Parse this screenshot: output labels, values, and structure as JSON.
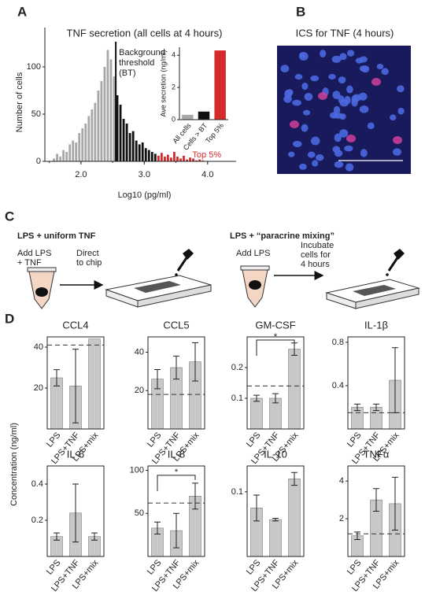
{
  "panel_labels": [
    "A",
    "B",
    "C",
    "D"
  ],
  "panel_b": {
    "title": "ICS for TNF (4 hours)"
  },
  "panel_c": {
    "left": {
      "title": "LPS + uniform TNF",
      "step1": [
        "Add LPS",
        "+ TNF"
      ],
      "step2": [
        "Direct",
        "to chip"
      ]
    },
    "right": {
      "title": "LPS + “paracrine mixing”",
      "step1": [
        "Add LPS"
      ],
      "step2": [
        "Incubate",
        "cells for",
        "4 hours"
      ]
    }
  },
  "panel_d": {
    "ylabel": "Concentration (ng/ml)"
  },
  "chart_data": [
    {
      "type": "histogram",
      "title": "TNF secretion (all cells at 4 hours)",
      "xlabel": "Log10 (pg/ml)",
      "ylabel": "Number of cells",
      "bins": [
        1.55,
        1.6,
        1.65,
        1.7,
        1.75,
        1.8,
        1.85,
        1.9,
        1.95,
        2.0,
        2.05,
        2.1,
        2.15,
        2.2,
        2.25,
        2.3,
        2.35,
        2.4,
        2.45,
        2.5,
        2.55,
        2.6,
        2.65,
        2.7,
        2.75,
        2.8,
        2.85,
        2.9,
        2.95,
        3.0,
        3.05,
        3.1,
        3.15,
        3.2,
        3.25,
        3.3,
        3.35,
        3.4,
        3.45,
        3.5,
        3.55,
        3.6,
        3.65,
        3.7,
        3.75,
        3.8,
        3.85,
        3.9,
        3.95
      ],
      "counts": [
        3,
        8,
        5,
        12,
        10,
        18,
        22,
        20,
        30,
        35,
        40,
        48,
        55,
        62,
        75,
        85,
        100,
        118,
        108,
        90,
        70,
        60,
        45,
        40,
        30,
        32,
        22,
        18,
        20,
        14,
        12,
        10,
        8,
        6,
        9,
        5,
        7,
        4,
        10,
        5,
        3,
        6,
        2,
        4,
        3,
        1,
        2,
        1
      ],
      "color": "#a8a8a8",
      "annotations": [
        {
          "text": [
            "Background",
            "threshold",
            "(BT)"
          ],
          "x": 2.55,
          "color": "#111111",
          "line": true
        },
        {
          "text": [
            "Top 5%"
          ],
          "x": 3.2,
          "color": "#d42a2a",
          "line": false
        }
      ],
      "xlim": [
        1.43,
        4.45
      ],
      "xticks": [
        {
          "value": 2,
          "label": "2.0"
        },
        {
          "value": 3,
          "label": "3.0"
        },
        {
          "value": 4,
          "label": "4.0"
        }
      ],
      "ylim": [
        0,
        125
      ],
      "yticks": [
        0,
        50,
        100
      ]
    },
    {
      "type": "bar",
      "ylabel": "Ave secretion (ng/ml)",
      "categories": [
        "All cells",
        "Cells > BT",
        "Top 5%"
      ],
      "values": [
        0.3,
        0.5,
        4.3
      ],
      "colors": [
        "#a8a8a8",
        "#111111",
        "#d42a2a"
      ],
      "ylim": [
        0,
        4.5
      ],
      "yticks": [
        0,
        2,
        4
      ]
    },
    {
      "type": "bar",
      "title": "CCL4",
      "categories": [
        "LPS",
        "LPS+TNF",
        "LPS+mix"
      ],
      "values": [
        25,
        21,
        44
      ],
      "errors": [
        4,
        18,
        0
      ],
      "color": "#c8c8c8",
      "reference": 41,
      "ylim": [
        0,
        45
      ],
      "yticks": [
        20,
        40
      ]
    },
    {
      "type": "bar",
      "title": "CCL5",
      "categories": [
        "LPS",
        "LPS+TNF",
        "LPS+mix"
      ],
      "values": [
        26,
        32,
        35
      ],
      "errors": [
        5,
        6,
        10
      ],
      "color": "#c8c8c8",
      "reference": 18,
      "ylim": [
        0,
        48
      ],
      "yticks": [
        20,
        40
      ]
    },
    {
      "type": "bar",
      "title": "GM-CSF",
      "categories": [
        "LPS",
        "LPS+TNF",
        "LPS+mix"
      ],
      "values": [
        0.1,
        0.1,
        0.26
      ],
      "errors": [
        0.01,
        0.015,
        0.02
      ],
      "color": "#c8c8c8",
      "reference": 0.14,
      "significance": {
        "pair": [
          "LPS",
          "LPS+mix"
        ],
        "label": "*"
      },
      "ylim": [
        0,
        0.3
      ],
      "yticks": [
        0.1,
        0.2
      ]
    },
    {
      "type": "bar",
      "title": "IL-1β",
      "categories": [
        "LPS",
        "LPS+TNF",
        "LPS+mix"
      ],
      "values": [
        0.2,
        0.2,
        0.45
      ],
      "errors": [
        0.03,
        0.03,
        0.3
      ],
      "color": "#c8c8c8",
      "reference": 0.15,
      "ylim": [
        0,
        0.85
      ],
      "yticks": [
        0.4,
        0.8
      ]
    },
    {
      "type": "bar",
      "title": "IL-6",
      "categories": [
        "LPS",
        "LPS+TNF",
        "LPS+mix"
      ],
      "values": [
        0.11,
        0.24,
        0.11
      ],
      "errors": [
        0.02,
        0.16,
        0.02
      ],
      "color": "#c8c8c8",
      "ylim": [
        0,
        0.5
      ],
      "yticks": [
        0.2,
        0.4
      ]
    },
    {
      "type": "bar",
      "title": "IL-8",
      "categories": [
        "LPS",
        "LPS+TNF",
        "LPS+mix"
      ],
      "values": [
        33,
        30,
        70
      ],
      "errors": [
        7,
        20,
        15
      ],
      "color": "#c8c8c8",
      "reference": 62,
      "significance": {
        "pair": [
          "LPS",
          "LPS+mix"
        ],
        "label": "*"
      },
      "ylim": [
        0,
        105
      ],
      "yticks": [
        50,
        100
      ]
    },
    {
      "type": "bar",
      "title": "IL-10",
      "categories": [
        "LPS",
        "LPS+TNF",
        "LPS+mix"
      ],
      "values": [
        0.075,
        0.057,
        0.12
      ],
      "errors": [
        0.02,
        0.002,
        0.01
      ],
      "color": "#c8c8c8",
      "ylim": [
        0,
        0.14
      ],
      "yticks": [
        0.1
      ]
    },
    {
      "type": "bar",
      "title": "TNFα",
      "categories": [
        "LPS",
        "LPS+TNF",
        "LPS+mix"
      ],
      "values": [
        1.1,
        3.0,
        2.8
      ],
      "errors": [
        0.2,
        0.6,
        1.4
      ],
      "color": "#c8c8c8",
      "reference": 1.2,
      "ylim": [
        0,
        4.8
      ],
      "yticks": [
        2,
        4
      ]
    }
  ]
}
